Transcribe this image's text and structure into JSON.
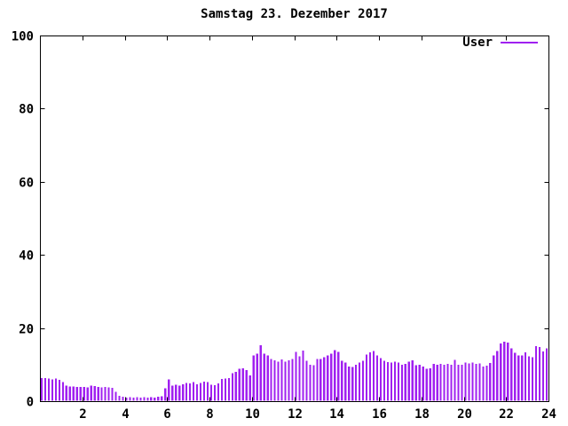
{
  "window": {
    "title": "Samstag 23. Dezember 2017"
  },
  "colors": {
    "background": "#ffffff",
    "axis": "#000000",
    "text": "#000000",
    "bar": "#a020f0"
  },
  "legend": {
    "label": "User"
  },
  "chart_data": {
    "type": "bar",
    "title": "Samstag 23. Dezember 2017",
    "xlabel": "",
    "ylabel": "",
    "xlim": [
      0,
      24
    ],
    "ylim": [
      0,
      100
    ],
    "xticks": [
      2,
      4,
      6,
      8,
      10,
      12,
      14,
      16,
      18,
      20,
      22,
      24
    ],
    "yticks": [
      0,
      20,
      40,
      60,
      80,
      100
    ],
    "grid": false,
    "legend_position": "top-right",
    "interval_minutes": 10,
    "series": [
      {
        "name": "User",
        "color": "#a020f0",
        "values": [
          6.3,
          6.3,
          6.2,
          6.0,
          6.2,
          5.8,
          5.2,
          4.2,
          4.0,
          4.0,
          3.9,
          3.9,
          3.9,
          3.8,
          4.2,
          4.1,
          3.9,
          3.8,
          3.9,
          3.8,
          3.7,
          2.6,
          1.5,
          1.2,
          1.0,
          1.1,
          1.0,
          1.1,
          1.0,
          1.1,
          1.0,
          1.1,
          1.0,
          1.2,
          1.3,
          3.5,
          6.0,
          4.2,
          4.5,
          4.3,
          4.6,
          5.0,
          4.8,
          5.2,
          4.6,
          5.0,
          5.4,
          5.2,
          4.5,
          4.4,
          4.8,
          6.1,
          6.2,
          6.3,
          7.6,
          8.0,
          8.8,
          9.0,
          8.5,
          7.0,
          12.5,
          13.0,
          15.3,
          13.0,
          12.5,
          11.5,
          11.2,
          10.8,
          11.4,
          10.8,
          11.2,
          11.5,
          13.5,
          12.3,
          13.8,
          11.0,
          10.0,
          9.8,
          11.5,
          11.5,
          12.0,
          12.5,
          13.0,
          14.0,
          13.5,
          11.0,
          10.5,
          9.5,
          9.4,
          10.0,
          10.5,
          11.0,
          12.7,
          13.3,
          13.7,
          12.5,
          11.8,
          11.0,
          10.7,
          10.5,
          10.8,
          10.5,
          10.0,
          10.2,
          10.8,
          11.2,
          9.8,
          10.0,
          9.5,
          8.9,
          9.0,
          10.2,
          10.0,
          10.2,
          10.0,
          10.2,
          10.0,
          11.3,
          10.0,
          10.0,
          10.5,
          10.3,
          10.5,
          10.2,
          10.3,
          9.5,
          9.7,
          10.4,
          12.5,
          13.7,
          15.8,
          16.3,
          16.0,
          14.5,
          13.2,
          12.5,
          12.5,
          13.3,
          12.3,
          12.0,
          15.0,
          14.8,
          13.6,
          14.5
        ]
      }
    ]
  }
}
